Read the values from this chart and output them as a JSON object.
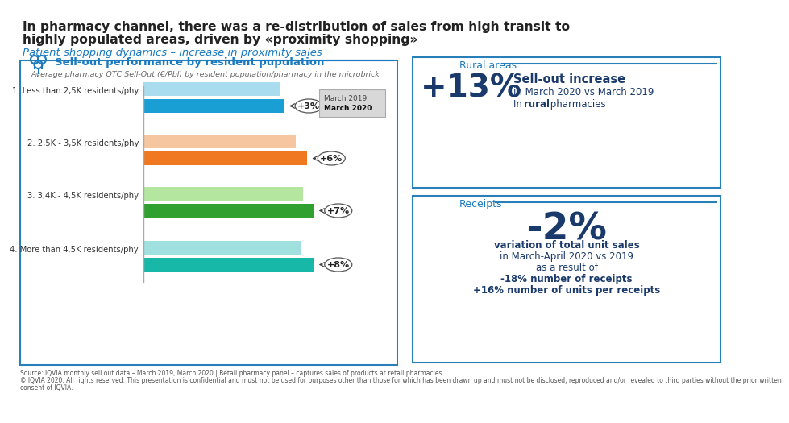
{
  "title_line1": "In pharmacy channel, there was a re-distribution of sales from high transit to",
  "title_line2": "highly populated areas, driven by «proximity shopping»",
  "subtitle": "Patient shopping dynamics – increase in proximity sales",
  "left_panel_title": "Sell-out performance by resident pupulation",
  "left_panel_subtitle": "Average pharmacy OTC Sell-Out (€/Pbl) by resident population/pharmacy in the microbrick",
  "categories": [
    "1. Less than 2,5K residents/phy",
    "2. 2,5K - 3,5K residents/phy",
    "3. 3,4K - 4,5K residents/phy",
    "4. More than 4,5K residents/phy"
  ],
  "march2019_values": [
    60,
    67,
    70,
    69
  ],
  "march2020_values": [
    62,
    72,
    75,
    75
  ],
  "colors_2019": [
    "#aadcf0",
    "#f5c6a0",
    "#b5e6a0",
    "#a0e0de"
  ],
  "colors_2020": [
    "#1a9fd4",
    "#f07820",
    "#30a030",
    "#18b8a8"
  ],
  "pct_labels": [
    "+3%",
    "+6%",
    "+7%",
    "+8%"
  ],
  "legend_2019_label": "March 2019",
  "legend_2020_label": "March 2020",
  "rural_big": "+13%",
  "rural_title": "Sell-out increase",
  "rural_line1": "in March 2020 vs March 2019",
  "rural_line2_pre": "In ",
  "rural_bold": "rural",
  "rural_line2_post": " pharmacies",
  "receipts_big": "-2%",
  "receipts_line1": "variation of total unit sales",
  "receipts_line2": "in March-April 2020 vs 2019",
  "receipts_line3": "as a result of",
  "receipts_line4": "-18% number of receipts",
  "receipts_line5": "+16% number of units per receipts",
  "source_text1": "Source: IQVIA monthly sell out data – March 2019, March 2020 | Retail pharmacy panel – captures sales of products at retail pharmacies",
  "source_text2": "© IQVIA 2020. All rights reserved. This presentation is confidential and must not be used for purposes other than those for which has been drawn up and must not be disclosed, reproduced and/or revealed to third parties without the prior written",
  "source_text3": "consent of IQVIA.",
  "dark_blue": "#1a3a6b",
  "medium_blue": "#1a7abf",
  "title_color": "#222222",
  "bg_color": "#ffffff",
  "panel_border_color": "#2980b9",
  "bar_max": 85
}
